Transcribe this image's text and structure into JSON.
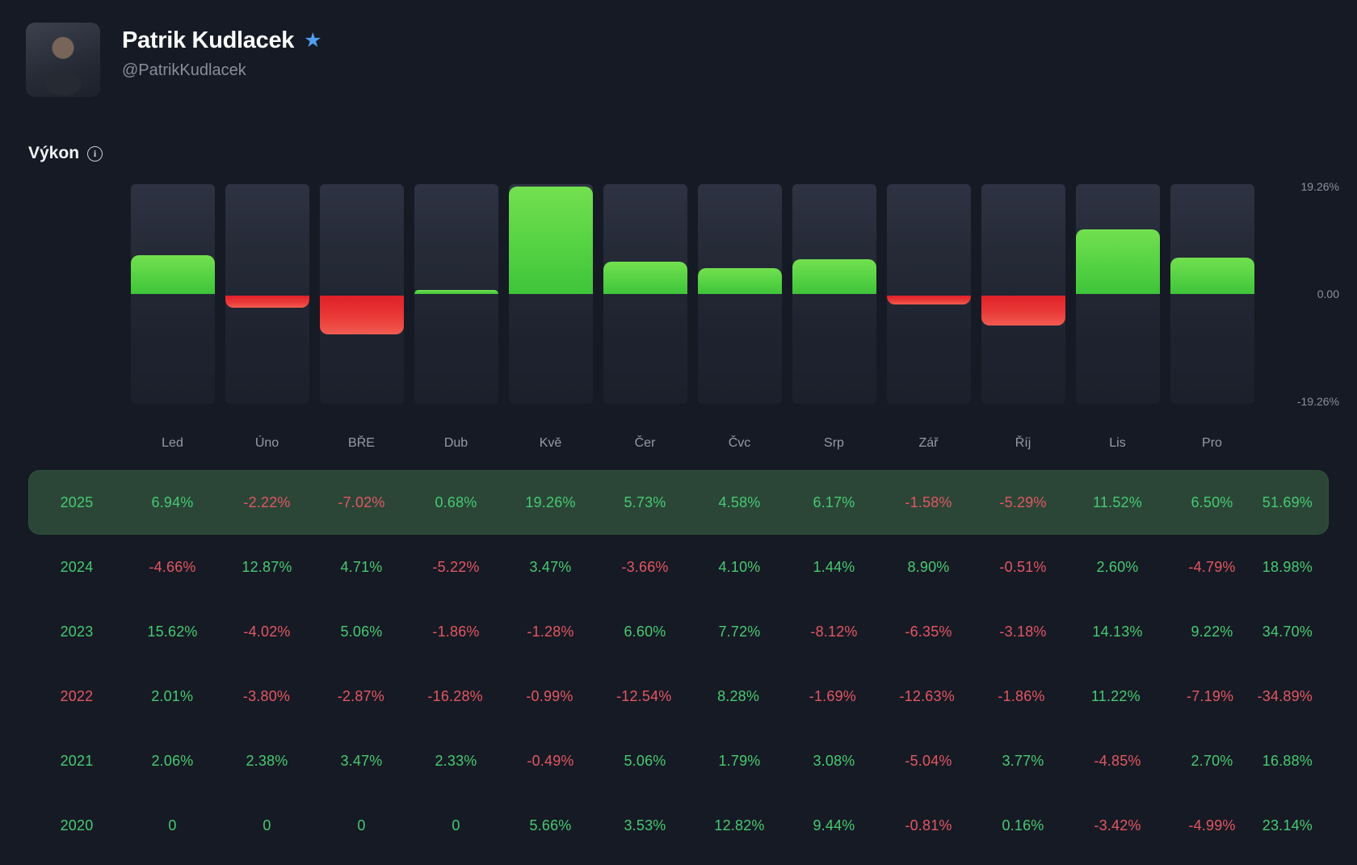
{
  "profile": {
    "name": "Patrik Kudlacek",
    "handle": "@PatrikKudlacek",
    "verified_star_color": "#4fa0f2"
  },
  "section": {
    "title": "Výkon",
    "info_icon": "info-circle"
  },
  "chart_data": {
    "type": "bar",
    "title": "Výkon",
    "series_year": "2025",
    "categories": [
      "Led",
      "Úno",
      "BŘE",
      "Dub",
      "Kvě",
      "Čer",
      "Čvc",
      "Srp",
      "Zář",
      "Říj",
      "Lis",
      "Pro"
    ],
    "values": [
      6.94,
      -2.22,
      -7.02,
      0.68,
      19.26,
      5.73,
      4.58,
      6.17,
      -1.58,
      -5.29,
      11.52,
      6.5
    ],
    "ylim": [
      -19.26,
      19.26
    ],
    "yticks": [
      "19.26%",
      "0.00",
      "-19.26%"
    ],
    "grid": "off",
    "positive_color": "#55d243",
    "negative_color": "#e93a38"
  },
  "table": {
    "months": [
      "Led",
      "Úno",
      "BŘE",
      "Dub",
      "Kvě",
      "Čer",
      "Čvc",
      "Srp",
      "Zář",
      "Říj",
      "Lis",
      "Pro"
    ],
    "rows": [
      {
        "year": "2025",
        "values": [
          "6.94%",
          "-2.22%",
          "-7.02%",
          "0.68%",
          "19.26%",
          "5.73%",
          "4.58%",
          "6.17%",
          "-1.58%",
          "-5.29%",
          "11.52%",
          "6.50%"
        ],
        "total": "51.69%",
        "highlight": true
      },
      {
        "year": "2024",
        "values": [
          "-4.66%",
          "12.87%",
          "4.71%",
          "-5.22%",
          "3.47%",
          "-3.66%",
          "4.10%",
          "1.44%",
          "8.90%",
          "-0.51%",
          "2.60%",
          "-4.79%"
        ],
        "total": "18.98%",
        "highlight": false
      },
      {
        "year": "2023",
        "values": [
          "15.62%",
          "-4.02%",
          "5.06%",
          "-1.86%",
          "-1.28%",
          "6.60%",
          "7.72%",
          "-8.12%",
          "-6.35%",
          "-3.18%",
          "14.13%",
          "9.22%"
        ],
        "total": "34.70%",
        "highlight": false
      },
      {
        "year": "2022",
        "values": [
          "2.01%",
          "-3.80%",
          "-2.87%",
          "-16.28%",
          "-0.99%",
          "-12.54%",
          "8.28%",
          "-1.69%",
          "-12.63%",
          "-1.86%",
          "11.22%",
          "-7.19%"
        ],
        "total": "-34.89%",
        "highlight": false
      },
      {
        "year": "2021",
        "values": [
          "2.06%",
          "2.38%",
          "3.47%",
          "2.33%",
          "-0.49%",
          "5.06%",
          "1.79%",
          "3.08%",
          "-5.04%",
          "3.77%",
          "-4.85%",
          "2.70%"
        ],
        "total": "16.88%",
        "highlight": false
      },
      {
        "year": "2020",
        "values": [
          "0",
          "0",
          "0",
          "0",
          "5.66%",
          "3.53%",
          "12.82%",
          "9.44%",
          "-0.81%",
          "0.16%",
          "-3.42%",
          "-4.99%"
        ],
        "total": "23.14%",
        "highlight": false
      }
    ]
  }
}
